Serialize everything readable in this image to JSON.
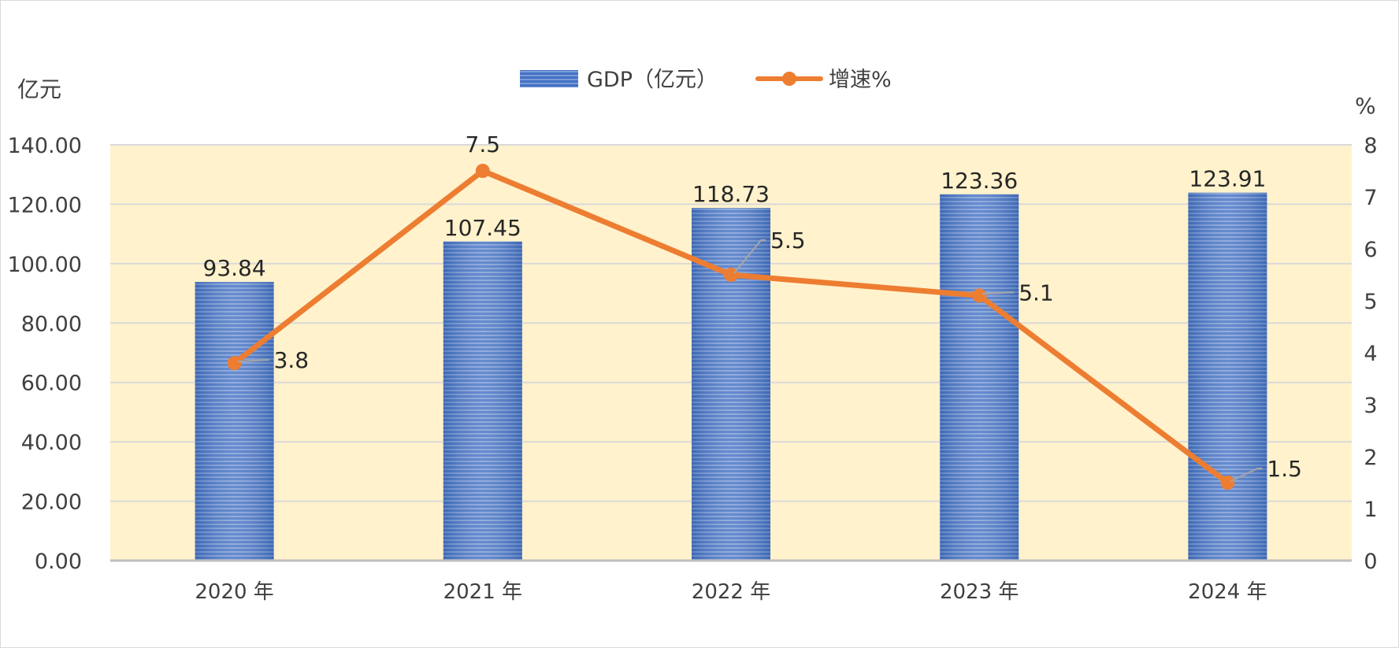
{
  "chart_data": {
    "type": "bar+line",
    "categories": [
      "2020 年",
      "2021 年",
      "2022 年",
      "2023 年",
      "2024 年"
    ],
    "series": [
      {
        "name": "GDP（亿元）",
        "type": "bar",
        "axis": "left",
        "values": [
          93.84,
          107.45,
          118.73,
          123.36,
          123.91
        ],
        "labels": [
          "93.84",
          "107.45",
          "118.73",
          "123.36",
          "123.91"
        ]
      },
      {
        "name": "增速%",
        "type": "line",
        "axis": "right",
        "values": [
          3.8,
          7.5,
          5.5,
          5.1,
          1.5
        ],
        "labels": [
          "3.8",
          "7.5",
          "5.5",
          "5.1",
          "1.5"
        ]
      }
    ],
    "y_left": {
      "label": "亿元",
      "min": 0,
      "max": 140,
      "step": 20,
      "ticks": [
        "0.00",
        "20.00",
        "40.00",
        "60.00",
        "80.00",
        "100.00",
        "120.00",
        "140.00"
      ]
    },
    "y_right": {
      "label": "%",
      "min": 0,
      "max": 8,
      "step": 1,
      "ticks": [
        "0",
        "1",
        "2",
        "3",
        "4",
        "5",
        "6",
        "7",
        "8"
      ]
    },
    "grid": true,
    "legend_position": "top-center",
    "colors": {
      "bar": "#4472C4",
      "bar_light": "#8FAADC",
      "line": "#ED7D31",
      "plot_bg": "#FFF2CC",
      "grid": "#D9D9D9",
      "axis": "#BFBFBF"
    }
  }
}
